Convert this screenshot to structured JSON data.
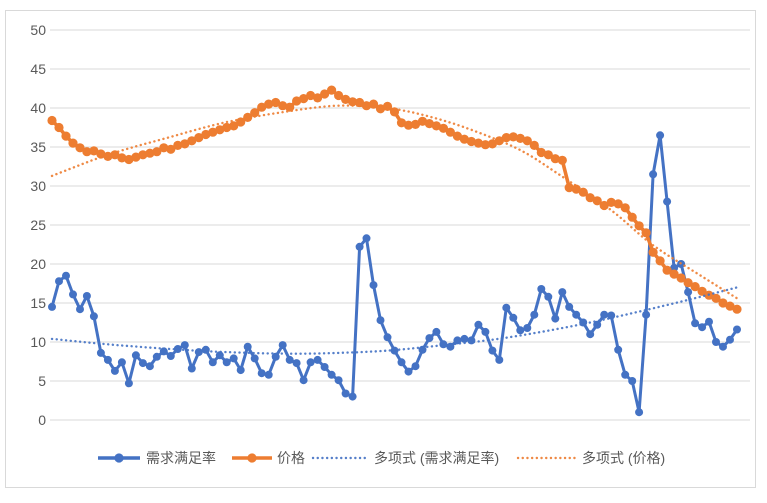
{
  "colors": {
    "background": "#FFFFFF",
    "border": "#D9D9D9",
    "gridline": "#D9D9D9",
    "axis_label": "#595959",
    "legend_label": "#595959",
    "series_blue": "#4472C4",
    "series_orange": "#ED7D31"
  },
  "chart_data": {
    "type": "line",
    "title": "",
    "xlabel": "",
    "ylabel": "",
    "grid": true,
    "legend_position": "bottom",
    "n_points": 99,
    "ylim": [
      0,
      50
    ],
    "y_ticks": [
      0,
      5,
      10,
      15,
      20,
      25,
      30,
      35,
      40,
      45,
      50
    ],
    "series": [
      {
        "name": "需求满足率",
        "kind": "line_markers",
        "color": "#4472C4",
        "values": [
          14.5,
          17.8,
          18.5,
          16.1,
          14.2,
          15.9,
          13.3,
          8.6,
          7.7,
          6.3,
          7.4,
          4.7,
          8.3,
          7.3,
          6.9,
          8.1,
          8.8,
          8.2,
          9.1,
          9.6,
          6.6,
          8.7,
          9.0,
          7.4,
          8.3,
          7.4,
          7.9,
          6.4,
          9.4,
          7.9,
          6.0,
          5.8,
          8.1,
          9.6,
          7.7,
          7.3,
          5.1,
          7.4,
          7.7,
          6.8,
          5.8,
          5.1,
          3.4,
          3.0,
          22.2,
          23.3,
          17.3,
          12.8,
          10.6,
          8.9,
          7.4,
          6.2,
          6.9,
          9.0,
          10.5,
          11.3,
          9.7,
          9.4,
          10.2,
          10.4,
          10.2,
          12.2,
          11.3,
          8.9,
          7.7,
          14.4,
          13.1,
          11.5,
          11.8,
          13.5,
          16.8,
          15.8,
          13.0,
          16.4,
          14.5,
          13.5,
          12.5,
          11.0,
          12.2,
          13.5,
          13.4,
          9.0,
          5.8,
          5.0,
          1.0,
          13.5,
          31.5,
          36.5,
          28.0,
          19.5,
          20.0,
          16.4,
          12.4,
          11.9,
          12.6,
          10.0,
          9.4,
          10.3,
          11.6
        ]
      },
      {
        "name": "价格",
        "kind": "line_markers",
        "color": "#ED7D31",
        "values": [
          38.4,
          37.5,
          36.4,
          35.5,
          34.9,
          34.4,
          34.5,
          34.1,
          33.8,
          34.0,
          33.6,
          33.4,
          33.7,
          34.0,
          34.2,
          34.4,
          34.9,
          34.7,
          35.2,
          35.4,
          35.8,
          36.2,
          36.6,
          36.9,
          37.2,
          37.5,
          37.7,
          38.2,
          38.8,
          39.4,
          40.1,
          40.5,
          40.7,
          40.3,
          40.1,
          40.9,
          41.2,
          41.6,
          41.3,
          41.8,
          42.3,
          41.6,
          41.1,
          40.8,
          40.7,
          40.3,
          40.5,
          39.9,
          40.2,
          39.5,
          38.1,
          37.8,
          37.9,
          38.3,
          38.0,
          37.7,
          37.4,
          36.9,
          36.4,
          36.0,
          35.7,
          35.5,
          35.3,
          35.4,
          35.8,
          36.2,
          36.3,
          36.1,
          35.8,
          35.2,
          34.3,
          34.0,
          33.5,
          33.3,
          29.8,
          29.6,
          29.2,
          28.5,
          28.1,
          27.5,
          27.9,
          27.7,
          27.2,
          26.0,
          24.9,
          24.0,
          21.5,
          20.4,
          19.2,
          18.7,
          18.2,
          17.6,
          17.1,
          16.5,
          16.0,
          15.6,
          15.0,
          14.6,
          14.2
        ]
      },
      {
        "name": "多项式 (需求满足率)",
        "kind": "poly_trend_dotted",
        "color": "#4472C4",
        "anchors": [
          [
            0,
            10.4
          ],
          [
            8,
            9.7
          ],
          [
            17,
            9.1
          ],
          [
            25,
            8.7
          ],
          [
            34,
            8.5
          ],
          [
            41,
            8.6
          ],
          [
            48,
            8.9
          ],
          [
            55,
            9.5
          ],
          [
            63,
            10.3
          ],
          [
            70,
            11.3
          ],
          [
            77,
            12.5
          ],
          [
            84,
            13.9
          ],
          [
            91,
            15.4
          ],
          [
            98,
            17.0
          ]
        ]
      },
      {
        "name": "多项式 (价格)",
        "kind": "poly_trend_dotted",
        "color": "#ED7D31",
        "anchors": [
          [
            0,
            31.3
          ],
          [
            8,
            34.0
          ],
          [
            17,
            36.3
          ],
          [
            25,
            38.2
          ],
          [
            34,
            39.6
          ],
          [
            41,
            40.3
          ],
          [
            48,
            40.0
          ],
          [
            54,
            38.9
          ],
          [
            60,
            37.2
          ],
          [
            67,
            34.6
          ],
          [
            73,
            31.2
          ],
          [
            80,
            26.9
          ],
          [
            86,
            22.4
          ],
          [
            93,
            18.4
          ],
          [
            98,
            15.6
          ]
        ]
      }
    ],
    "legend": {
      "items": [
        "需求满足率",
        "价格",
        "多项式 (需求满足率)",
        "多项式 (价格)"
      ]
    }
  }
}
